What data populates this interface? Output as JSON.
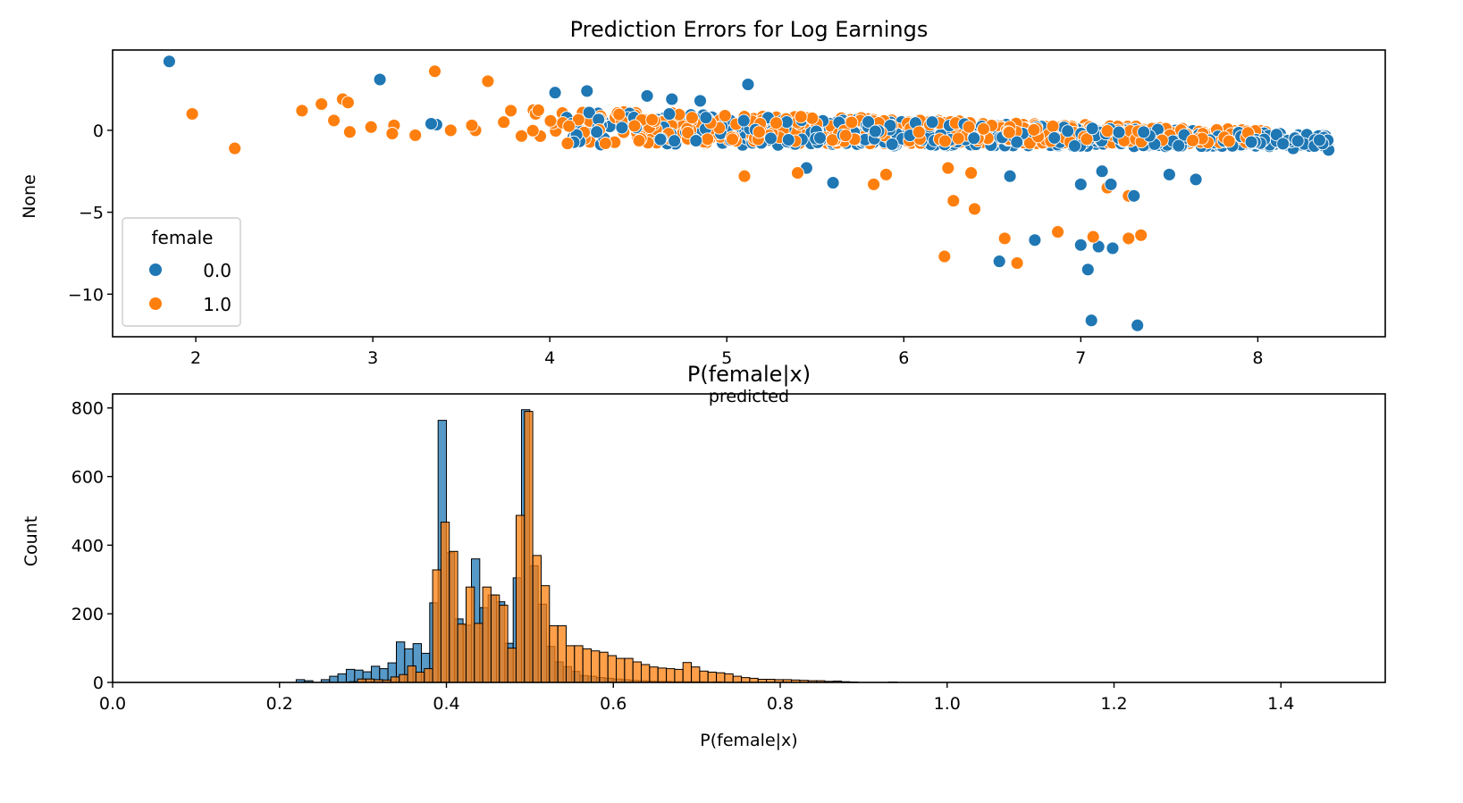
{
  "chart_data": [
    {
      "type": "scatter",
      "title": "Prediction Errors for Log Earnings",
      "xlabel": "predicted",
      "ylabel": "None",
      "xlim": [
        1.53,
        8.72
      ],
      "ylim": [
        -12.6,
        4.9
      ],
      "xticks": [
        2,
        3,
        4,
        5,
        6,
        7,
        8
      ],
      "xtick_labels": [
        "2",
        "3",
        "4",
        "5",
        "6",
        "7",
        "8"
      ],
      "yticks": [
        0,
        -5,
        -10
      ],
      "ytick_labels": [
        "0",
        "−5",
        "−10"
      ],
      "legend": {
        "title": "female",
        "placement": "lower-left",
        "entries": [
          {
            "label": "0.0",
            "color": "#1f77b4"
          },
          {
            "label": "1.0",
            "color": "#ff7f0e"
          }
        ]
      },
      "series": [
        {
          "name": "0.0",
          "color": "#1f77b4",
          "outliers": [
            [
              1.85,
              4.2
            ],
            [
              3.04,
              3.1
            ],
            [
              3.33,
              0.4
            ],
            [
              3.36,
              0.35
            ],
            [
              4.03,
              2.3
            ],
            [
              4.21,
              2.4
            ],
            [
              4.55,
              2.1
            ],
            [
              4.69,
              1.9
            ],
            [
              4.85,
              1.8
            ],
            [
              5.12,
              2.8
            ],
            [
              5.6,
              -3.2
            ],
            [
              5.45,
              -2.3
            ],
            [
              6.54,
              -8.0
            ],
            [
              6.74,
              -6.7
            ],
            [
              7.04,
              -8.5
            ],
            [
              7.0,
              -7.0
            ],
            [
              7.1,
              -7.1
            ],
            [
              7.18,
              -7.2
            ],
            [
              7.06,
              -11.6
            ],
            [
              7.32,
              -11.9
            ],
            [
              7.3,
              -4.0
            ],
            [
              7.0,
              -3.3
            ],
            [
              7.17,
              -3.3
            ],
            [
              7.5,
              -2.7
            ],
            [
              7.65,
              -3.0
            ],
            [
              6.6,
              -2.8
            ],
            [
              7.12,
              -2.5
            ],
            [
              8.4,
              -1.2
            ],
            [
              8.35,
              -0.5
            ],
            [
              8.2,
              -1.1
            ]
          ],
          "band": {
            "x_start": 4.0,
            "x_end": 8.4,
            "upper_start": 1.3,
            "upper_end": -0.3,
            "lower_start": -0.9,
            "lower_end": -1.0,
            "count": 700
          }
        },
        {
          "name": "1.0",
          "color": "#ff7f0e",
          "outliers": [
            [
              1.98,
              1.0
            ],
            [
              2.22,
              -1.1
            ],
            [
              2.6,
              1.2
            ],
            [
              2.71,
              1.6
            ],
            [
              2.78,
              0.6
            ],
            [
              2.83,
              1.9
            ],
            [
              2.86,
              1.7
            ],
            [
              2.87,
              -0.1
            ],
            [
              2.99,
              0.2
            ],
            [
              3.12,
              0.3
            ],
            [
              3.11,
              -0.2
            ],
            [
              3.24,
              -0.3
            ],
            [
              3.35,
              3.6
            ],
            [
              3.44,
              0.0
            ],
            [
              3.56,
              0.3
            ],
            [
              3.65,
              3.0
            ],
            [
              3.58,
              0.0
            ],
            [
              3.74,
              0.5
            ],
            [
              3.78,
              1.2
            ],
            [
              3.92,
              1.0
            ],
            [
              4.1,
              -0.8
            ],
            [
              5.1,
              -2.8
            ],
            [
              5.4,
              -2.6
            ],
            [
              5.83,
              -3.3
            ],
            [
              5.9,
              -2.7
            ],
            [
              6.23,
              -7.7
            ],
            [
              6.28,
              -4.3
            ],
            [
              6.4,
              -4.8
            ],
            [
              6.57,
              -6.6
            ],
            [
              6.64,
              -8.1
            ],
            [
              6.87,
              -6.2
            ],
            [
              7.07,
              -6.5
            ],
            [
              7.27,
              -6.6
            ],
            [
              7.34,
              -6.4
            ],
            [
              7.15,
              -3.5
            ],
            [
              7.27,
              -4.0
            ],
            [
              6.25,
              -2.3
            ],
            [
              6.38,
              -2.6
            ]
          ],
          "band": {
            "x_start": 3.8,
            "x_end": 8.05,
            "upper_start": 1.4,
            "upper_end": 0.0,
            "lower_start": -0.8,
            "lower_end": -0.8,
            "count": 650
          }
        }
      ]
    },
    {
      "type": "bar",
      "subtype": "histogram",
      "title": "P(female|x)",
      "xlabel": "P(female|x)",
      "ylabel": "Count",
      "xlim": [
        0.0,
        1.525
      ],
      "ylim": [
        0,
        841
      ],
      "xticks": [
        0.0,
        0.2,
        0.4,
        0.6,
        0.8,
        1.0,
        1.2,
        1.4
      ],
      "xtick_labels": [
        "0.0",
        "0.2",
        "0.4",
        "0.6",
        "0.8",
        "1.0",
        "1.2",
        "1.4"
      ],
      "yticks": [
        0,
        200,
        400,
        600,
        800
      ],
      "ytick_labels": [
        "0",
        "200",
        "400",
        "600",
        "800"
      ],
      "bin_width": 0.01,
      "series": [
        {
          "name": "0.0",
          "color": "#1f77b4",
          "bins": [
            [
              0.22,
              8
            ],
            [
              0.23,
              5
            ],
            [
              0.25,
              8
            ],
            [
              0.26,
              18
            ],
            [
              0.27,
              25
            ],
            [
              0.28,
              38
            ],
            [
              0.29,
              36
            ],
            [
              0.3,
              31
            ],
            [
              0.31,
              47
            ],
            [
              0.32,
              40
            ],
            [
              0.33,
              57
            ],
            [
              0.34,
              118
            ],
            [
              0.35,
              98
            ],
            [
              0.36,
              113
            ],
            [
              0.37,
              85
            ],
            [
              0.38,
              232
            ],
            [
              0.39,
              764
            ],
            [
              0.4,
              378
            ],
            [
              0.41,
              185
            ],
            [
              0.42,
              167
            ],
            [
              0.43,
              360
            ],
            [
              0.44,
              218
            ],
            [
              0.45,
              255
            ],
            [
              0.46,
              235
            ],
            [
              0.47,
              114
            ],
            [
              0.48,
              305
            ],
            [
              0.49,
              795
            ],
            [
              0.5,
              340
            ],
            [
              0.51,
              228
            ],
            [
              0.52,
              105
            ],
            [
              0.53,
              60
            ],
            [
              0.54,
              46
            ],
            [
              0.55,
              32
            ],
            [
              0.56,
              20
            ],
            [
              0.57,
              18
            ],
            [
              0.58,
              14
            ],
            [
              0.59,
              12
            ],
            [
              0.6,
              10
            ],
            [
              0.61,
              8
            ],
            [
              0.62,
              6
            ],
            [
              0.63,
              5
            ],
            [
              0.64,
              4
            ],
            [
              0.65,
              3
            ],
            [
              0.66,
              3
            ],
            [
              0.67,
              2
            ],
            [
              0.68,
              2
            ],
            [
              0.69,
              2
            ],
            [
              0.7,
              2
            ],
            [
              0.72,
              2
            ],
            [
              0.75,
              1
            ],
            [
              0.8,
              1
            ],
            [
              0.88,
              1
            ],
            [
              0.93,
              1
            ]
          ]
        },
        {
          "name": "1.0",
          "color": "#ff7f0e",
          "bins": [
            [
              0.28,
              2
            ],
            [
              0.29,
              10
            ],
            [
              0.3,
              10
            ],
            [
              0.31,
              8
            ],
            [
              0.32,
              7
            ],
            [
              0.33,
              16
            ],
            [
              0.34,
              23
            ],
            [
              0.35,
              48
            ],
            [
              0.36,
              30
            ],
            [
              0.37,
              40
            ],
            [
              0.38,
              328
            ],
            [
              0.39,
              467
            ],
            [
              0.4,
              382
            ],
            [
              0.41,
              170
            ],
            [
              0.42,
              278
            ],
            [
              0.43,
              172
            ],
            [
              0.44,
              278
            ],
            [
              0.45,
              255
            ],
            [
              0.46,
              225
            ],
            [
              0.47,
              100
            ],
            [
              0.48,
              487
            ],
            [
              0.49,
              790
            ],
            [
              0.5,
              370
            ],
            [
              0.51,
              282
            ],
            [
              0.52,
              165
            ],
            [
              0.53,
              165
            ],
            [
              0.54,
              107
            ],
            [
              0.55,
              107
            ],
            [
              0.56,
              98
            ],
            [
              0.57,
              92
            ],
            [
              0.58,
              88
            ],
            [
              0.59,
              78
            ],
            [
              0.6,
              70
            ],
            [
              0.61,
              70
            ],
            [
              0.62,
              60
            ],
            [
              0.63,
              52
            ],
            [
              0.64,
              45
            ],
            [
              0.65,
              42
            ],
            [
              0.66,
              40
            ],
            [
              0.67,
              38
            ],
            [
              0.68,
              58
            ],
            [
              0.69,
              45
            ],
            [
              0.7,
              33
            ],
            [
              0.71,
              30
            ],
            [
              0.72,
              28
            ],
            [
              0.73,
              25
            ],
            [
              0.74,
              18
            ],
            [
              0.75,
              14
            ],
            [
              0.76,
              12
            ],
            [
              0.77,
              9
            ],
            [
              0.78,
              9
            ],
            [
              0.79,
              8
            ],
            [
              0.8,
              8
            ],
            [
              0.81,
              7
            ],
            [
              0.82,
              6
            ],
            [
              0.83,
              5
            ],
            [
              0.84,
              5
            ],
            [
              0.85,
              3
            ],
            [
              0.86,
              4
            ],
            [
              0.87,
              2
            ],
            [
              0.88,
              1
            ]
          ]
        }
      ]
    }
  ]
}
